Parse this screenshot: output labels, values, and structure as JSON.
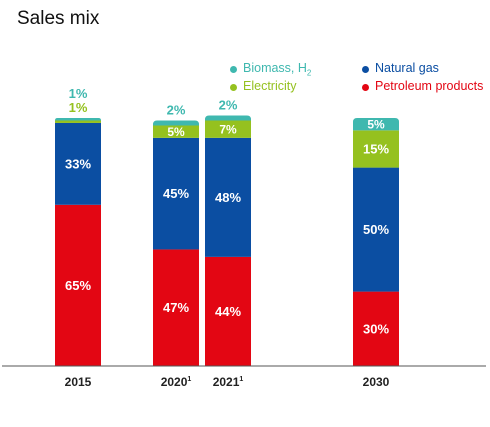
{
  "title": "Sales mix",
  "chart_data": {
    "type": "bar",
    "stacked": true,
    "categories": [
      "2015",
      "2020",
      "2021",
      "2030"
    ],
    "category_superscripts": [
      "",
      "1",
      "1",
      ""
    ],
    "series": [
      {
        "name": "Petroleum products",
        "color": "#e30613",
        "values": [
          65,
          47,
          44,
          30
        ],
        "labels": [
          "65%",
          "47%",
          "44%",
          "30%"
        ]
      },
      {
        "name": "Natural gas",
        "color": "#0b4ea2",
        "values": [
          33,
          45,
          48,
          50
        ],
        "labels": [
          "33%",
          "45%",
          "48%",
          "50%"
        ]
      },
      {
        "name": "Electricity",
        "color": "#95c11f",
        "values": [
          1,
          5,
          7,
          15
        ],
        "labels": [
          "1%",
          "5%",
          "7%",
          "15%"
        ]
      },
      {
        "name": "Biomass, H",
        "name_subscript": "2",
        "color": "#3fb8af",
        "values": [
          1,
          2,
          2,
          5
        ],
        "labels": [
          "1%",
          "2%",
          "2%",
          "5%"
        ]
      }
    ],
    "ylim": [
      0,
      100
    ],
    "grid": false,
    "legend_position": "top-right"
  }
}
